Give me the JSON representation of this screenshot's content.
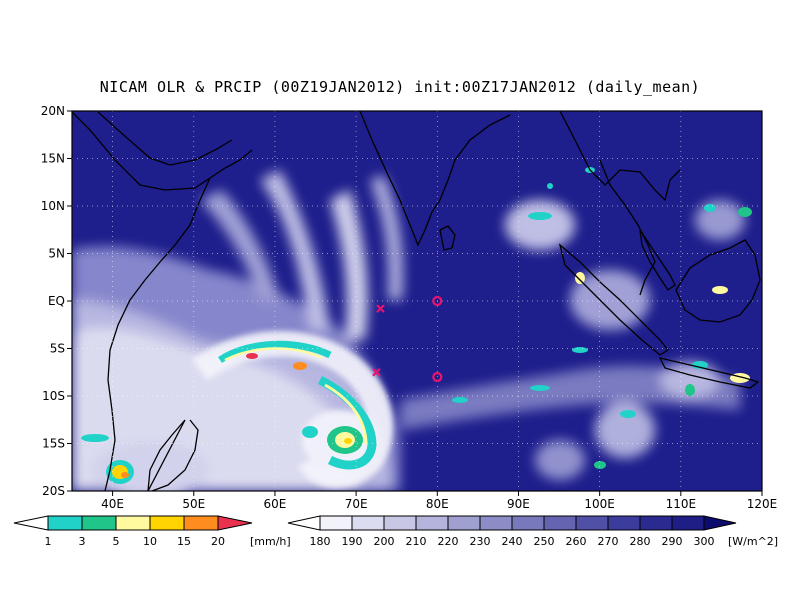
{
  "title": "NICAM OLR & PRCIP (00Z19JAN2012) init:00Z17JAN2012 (daily_mean)",
  "map": {
    "lon_range": [
      35,
      120
    ],
    "lat_range": [
      -20,
      20
    ],
    "lat_ticks": [
      "20N",
      "15N",
      "10N",
      "5N",
      "EQ",
      "5S",
      "10S",
      "15S",
      "20S"
    ],
    "lat_values": [
      20,
      15,
      10,
      5,
      0,
      -5,
      -10,
      -15,
      -20
    ],
    "lon_ticks": [
      "40E",
      "50E",
      "60E",
      "70E",
      "80E",
      "90E",
      "100E",
      "110E",
      "120E"
    ],
    "lon_values": [
      40,
      50,
      60,
      70,
      80,
      90,
      100,
      110,
      120
    ],
    "grid": true,
    "ocean_color": "#1e1e8c",
    "markers": [
      {
        "type": "x",
        "lon": 73.0,
        "lat": -0.8,
        "color": "#e8146e"
      },
      {
        "type": "o",
        "lon": 80.0,
        "lat": 0.0,
        "color": "#e8146e"
      },
      {
        "type": "x",
        "lon": 72.5,
        "lat": -7.5,
        "color": "#e8146e"
      },
      {
        "type": "o",
        "lon": 80.0,
        "lat": -8.0,
        "color": "#e8146e"
      }
    ]
  },
  "precip_colorbar": {
    "labels": [
      "1",
      "3",
      "5",
      "10",
      "15",
      "20"
    ],
    "unit": "[mm/h]",
    "colors": [
      "#20d2c8",
      "#20c58a",
      "#fffaa0",
      "#ffd400",
      "#ff8c1e",
      "#e83250"
    ]
  },
  "olr_colorbar": {
    "labels": [
      "180",
      "190",
      "200",
      "210",
      "220",
      "230",
      "240",
      "250",
      "260",
      "270",
      "280",
      "290",
      "300"
    ],
    "unit": "[W/m^2]",
    "colors": [
      "#f2f2fb",
      "#dcdcf0",
      "#c8c8e6",
      "#b4b4dc",
      "#a0a0d0",
      "#8c8cc6",
      "#7878bc",
      "#6464b0",
      "#5050a6",
      "#3c3c9c",
      "#2a2a90",
      "#1e1e86",
      "#14147a",
      "#0c0c6e"
    ]
  }
}
